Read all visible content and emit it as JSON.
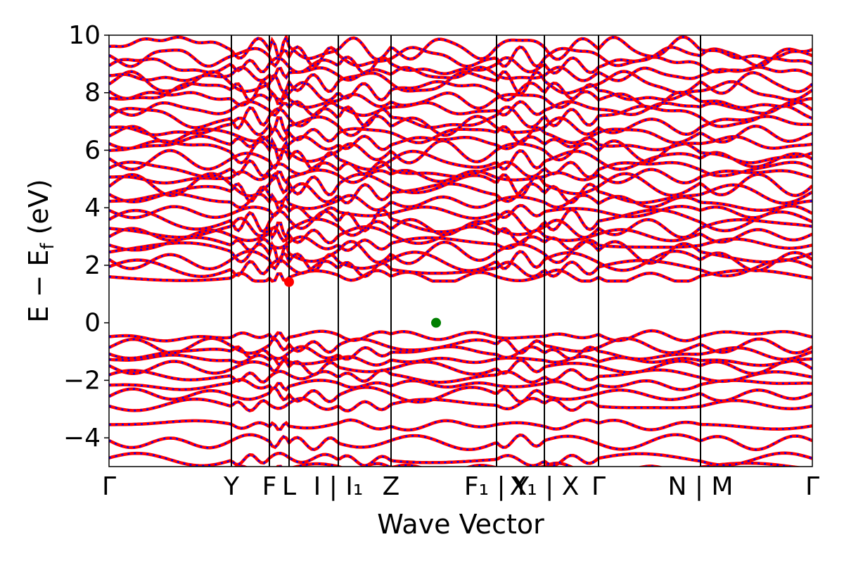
{
  "chart_data": {
    "type": "line",
    "title": "",
    "xlabel": "Wave Vector",
    "ylabel": "E − E_f (eV)",
    "ylabel_parts": {
      "main": "E − E",
      "sub": "f",
      "unit": "(eV)"
    },
    "xlim": [
      0,
      10
    ],
    "ylim": [
      -5,
      10
    ],
    "yticks": [
      -4,
      -2,
      0,
      2,
      4,
      6,
      8,
      10
    ],
    "ytick_labels": [
      "−4",
      "−2",
      "0",
      "2",
      "4",
      "6",
      "8",
      "10"
    ],
    "kpoints": [
      {
        "x": 0.0,
        "label": "Γ"
      },
      {
        "x": 1.74,
        "label": "Y"
      },
      {
        "x": 2.28,
        "label": "F"
      },
      {
        "x": 2.56,
        "label": "L"
      },
      {
        "x": 3.26,
        "label": "I | I₁"
      },
      {
        "x": 4.01,
        "label": "Z"
      },
      {
        "x": 5.51,
        "label": "F₁ | Y"
      },
      {
        "x": 6.19,
        "label": "X₁ | X"
      },
      {
        "x": 6.96,
        "label": "Γ"
      },
      {
        "x": 8.41,
        "label": "N | M"
      },
      {
        "x": 10.0,
        "label": "Γ"
      }
    ],
    "series": [
      {
        "color": "#ff0000",
        "style": "solid"
      },
      {
        "color": "#0000ff",
        "style": "dotted"
      }
    ],
    "cbm": {
      "x": 2.56,
      "y": 1.42,
      "color": "#ff0000"
    },
    "vbm": {
      "x": 4.65,
      "y": 0.0,
      "color": "#008000"
    },
    "bands_below": [
      -5.05,
      -4.75,
      -4.15,
      -3.55,
      -2.85,
      -2.5,
      -2.15,
      -1.85,
      -1.55,
      -1.3,
      -1.05,
      -0.8,
      -0.45
    ],
    "bands_above": [
      1.6,
      1.9,
      2.15,
      2.45,
      2.75,
      3.05,
      3.3,
      3.55,
      3.85,
      4.2,
      4.5,
      4.8,
      5.1,
      5.35,
      5.65,
      5.95,
      6.25,
      6.55,
      6.85,
      7.15,
      7.45,
      7.75,
      8.05,
      8.35,
      8.65,
      8.95,
      9.25,
      9.55
    ]
  }
}
